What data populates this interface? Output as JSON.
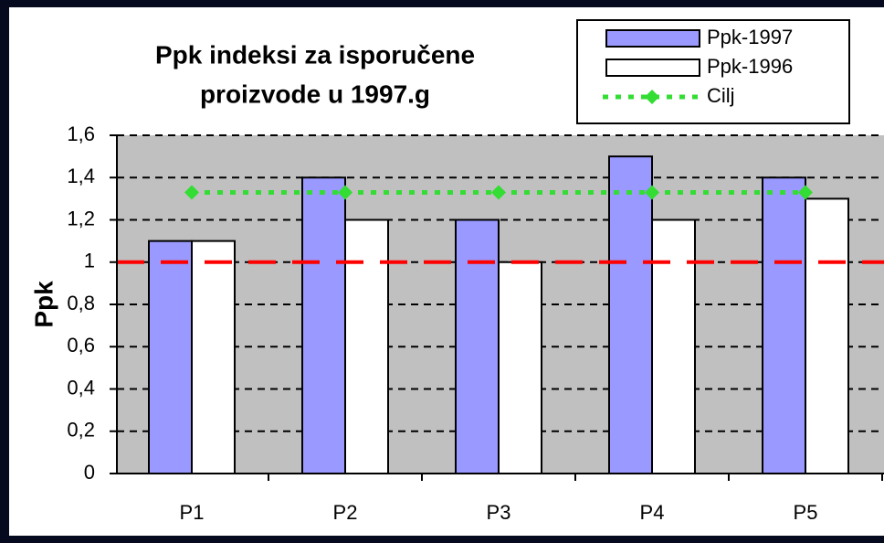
{
  "chart_data": {
    "type": "bar",
    "title": [
      "Ppk indeksi za isporučene",
      "proizvode u 1997.g"
    ],
    "y_label": "Ppk",
    "categories": [
      "P1",
      "P2",
      "P3",
      "P4",
      "P5"
    ],
    "series": [
      {
        "name": "Ppk-1997",
        "color": "#9999ff",
        "values": [
          1.1,
          1.4,
          1.2,
          1.5,
          1.4
        ]
      },
      {
        "name": "Ppk-1996",
        "color": "#ffffff",
        "values": [
          1.1,
          1.2,
          1.0,
          1.2,
          1.3
        ]
      },
      {
        "name": "Cilj",
        "type": "line",
        "color": "#33dd33",
        "values": [
          1.33,
          1.33,
          1.33,
          1.33,
          1.33
        ]
      }
    ],
    "reference_line": {
      "value": 1,
      "color": "#ff0000"
    },
    "ylim": [
      0,
      1.6
    ],
    "yticks": [
      0,
      {
        "value": 0.2,
        "label": "0,2"
      },
      {
        "value": 0.4,
        "label": "0,4"
      },
      {
        "value": 0.6,
        "label": "0,6"
      },
      {
        "value": 0.8,
        "label": "0,8"
      },
      1,
      {
        "value": 1.2,
        "label": "1,2"
      },
      {
        "value": 1.4,
        "label": "1,4"
      },
      {
        "value": 1.6,
        "label": "1,6"
      }
    ],
    "grid": true,
    "legend": "top-right"
  }
}
